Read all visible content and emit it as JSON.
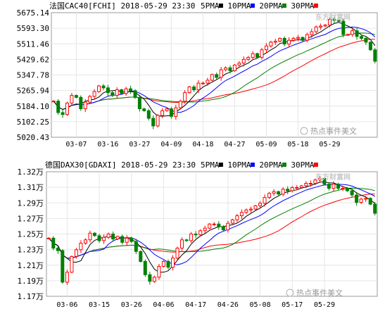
{
  "legend_labels": [
    "5PMA",
    "10PMA",
    "20PMA",
    "30PMA"
  ],
  "legend_colors": [
    "#000000",
    "#0000ff",
    "#008000",
    "#ff0000"
  ],
  "colors": {
    "up": "#ff0000",
    "down": "#008000",
    "ma5": "#000000",
    "ma10": "#0000ff",
    "ma20": "#008000",
    "ma30": "#ff0000",
    "grid": "#e6e6e6",
    "frame": "#999999"
  },
  "watermark": {
    "text": "热点事件美文",
    "logo": "东方财富网"
  },
  "chart_data": [
    {
      "type": "candlestick",
      "market": "法国",
      "title": "CAC40[FCHI] 2018-05-29 23:30",
      "yticks": [
        "5675.14",
        "5593.30",
        "5511.46",
        "5429.62",
        "5347.78",
        "5265.94",
        "5184.10",
        "5102.25",
        "5020.43"
      ],
      "ylim": [
        5020.43,
        5675.14
      ],
      "xticks": [
        {
          "label": "03-07",
          "index": 5
        },
        {
          "label": "03-16",
          "index": 12
        },
        {
          "label": "03-27",
          "index": 19
        },
        {
          "label": "04-09",
          "index": 26
        },
        {
          "label": "04-18",
          "index": 33
        },
        {
          "label": "04-27",
          "index": 40
        },
        {
          "label": "05-09",
          "index": 47
        },
        {
          "label": "05-18",
          "index": 54
        },
        {
          "label": "05-29",
          "index": 61
        }
      ],
      "close": [
        5210,
        5150,
        5140,
        5200,
        5240,
        5230,
        5170,
        5205,
        5235,
        5260,
        5290,
        5280,
        5255,
        5240,
        5270,
        5250,
        5275,
        5265,
        5230,
        5170,
        5160,
        5120,
        5080,
        5135,
        5160,
        5170,
        5130,
        5175,
        5210,
        5255,
        5285,
        5270,
        5305,
        5305,
        5320,
        5350,
        5335,
        5375,
        5385,
        5370,
        5400,
        5410,
        5430,
        5440,
        5460,
        5440,
        5480,
        5500,
        5520,
        5525,
        5540,
        5510,
        5530,
        5540,
        5545,
        5530,
        5560,
        5575,
        5600,
        5605,
        5610,
        5640,
        5635,
        5630,
        5560,
        5560,
        5580,
        5550,
        5540,
        5520,
        5480,
        5420
      ]
    },
    {
      "type": "candlestick",
      "market": "德国",
      "title": "DAX30[GDAXI] 2018-05-29 23:30",
      "yticks": [
        "1.32万",
        "1.31万",
        "1.29万",
        "1.27万",
        "1.25万",
        "1.23万",
        "1.21万",
        "1.19万",
        "1.17万"
      ],
      "ylim": [
        1.17,
        1.32
      ],
      "unit": "万",
      "xticks": [
        {
          "label": "03-06",
          "index": 4
        },
        {
          "label": "03-15",
          "index": 11
        },
        {
          "label": "03-26",
          "index": 18
        },
        {
          "label": "04-06",
          "index": 25
        },
        {
          "label": "04-17",
          "index": 32
        },
        {
          "label": "04-26",
          "index": 39
        },
        {
          "label": "05-08",
          "index": 46
        },
        {
          "label": "05-17",
          "index": 53
        },
        {
          "label": "05-29",
          "index": 60
        }
      ],
      "close": [
        1.24,
        1.228,
        1.225,
        1.187,
        1.199,
        1.218,
        1.226,
        1.234,
        1.238,
        1.246,
        1.243,
        1.237,
        1.241,
        1.245,
        1.239,
        1.242,
        1.235,
        1.24,
        1.236,
        1.224,
        1.212,
        1.196,
        1.188,
        1.193,
        1.206,
        1.212,
        1.205,
        1.216,
        1.228,
        1.238,
        1.237,
        1.245,
        1.244,
        1.249,
        1.252,
        1.257,
        1.257,
        1.254,
        1.25,
        1.258,
        1.262,
        1.267,
        1.271,
        1.274,
        1.275,
        1.279,
        1.282,
        1.289,
        1.294,
        1.296,
        1.293,
        1.299,
        1.297,
        1.301,
        1.301,
        1.303,
        1.306,
        1.306,
        1.31,
        1.312,
        1.305,
        1.3,
        1.305,
        1.3,
        1.3,
        1.297,
        1.292,
        1.283,
        1.287,
        1.288,
        1.281,
        1.27
      ]
    }
  ]
}
